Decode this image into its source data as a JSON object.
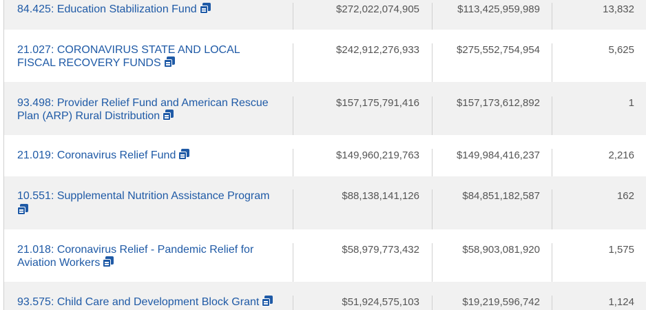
{
  "rows": [
    {
      "program": "84.425: Education Stabilization Fund",
      "amount1": "$272,022,074,905",
      "amount2": "$113,425,959,989",
      "count": "13,832"
    },
    {
      "program": "21.027: CORONAVIRUS STATE AND LOCAL FISCAL RECOVERY FUNDS",
      "amount1": "$242,912,276,933",
      "amount2": "$275,552,754,954",
      "count": "5,625"
    },
    {
      "program": "93.498: Provider Relief Fund and American Rescue Plan (ARP) Rural Distribution",
      "amount1": "$157,175,791,416",
      "amount2": "$157,173,612,892",
      "count": "1"
    },
    {
      "program": "21.019: Coronavirus Relief Fund",
      "amount1": "$149,960,219,763",
      "amount2": "$149,984,416,237",
      "count": "2,216"
    },
    {
      "program": "10.551: Supplemental Nutrition Assistance Program",
      "amount1": "$88,138,141,126",
      "amount2": "$84,851,182,587",
      "count": "162"
    },
    {
      "program": "21.018: Coronavirus Relief - Pandemic Relief for Aviation Workers",
      "amount1": "$58,979,773,432",
      "amount2": "$58,903,081,920",
      "count": "1,575"
    },
    {
      "program": "93.575: Child Care and Development Block Grant",
      "amount1": "$51,924,575,103",
      "amount2": "$19,219,596,742",
      "count": "1,124"
    }
  ],
  "icons": {
    "link_icon": "copy-icon"
  }
}
